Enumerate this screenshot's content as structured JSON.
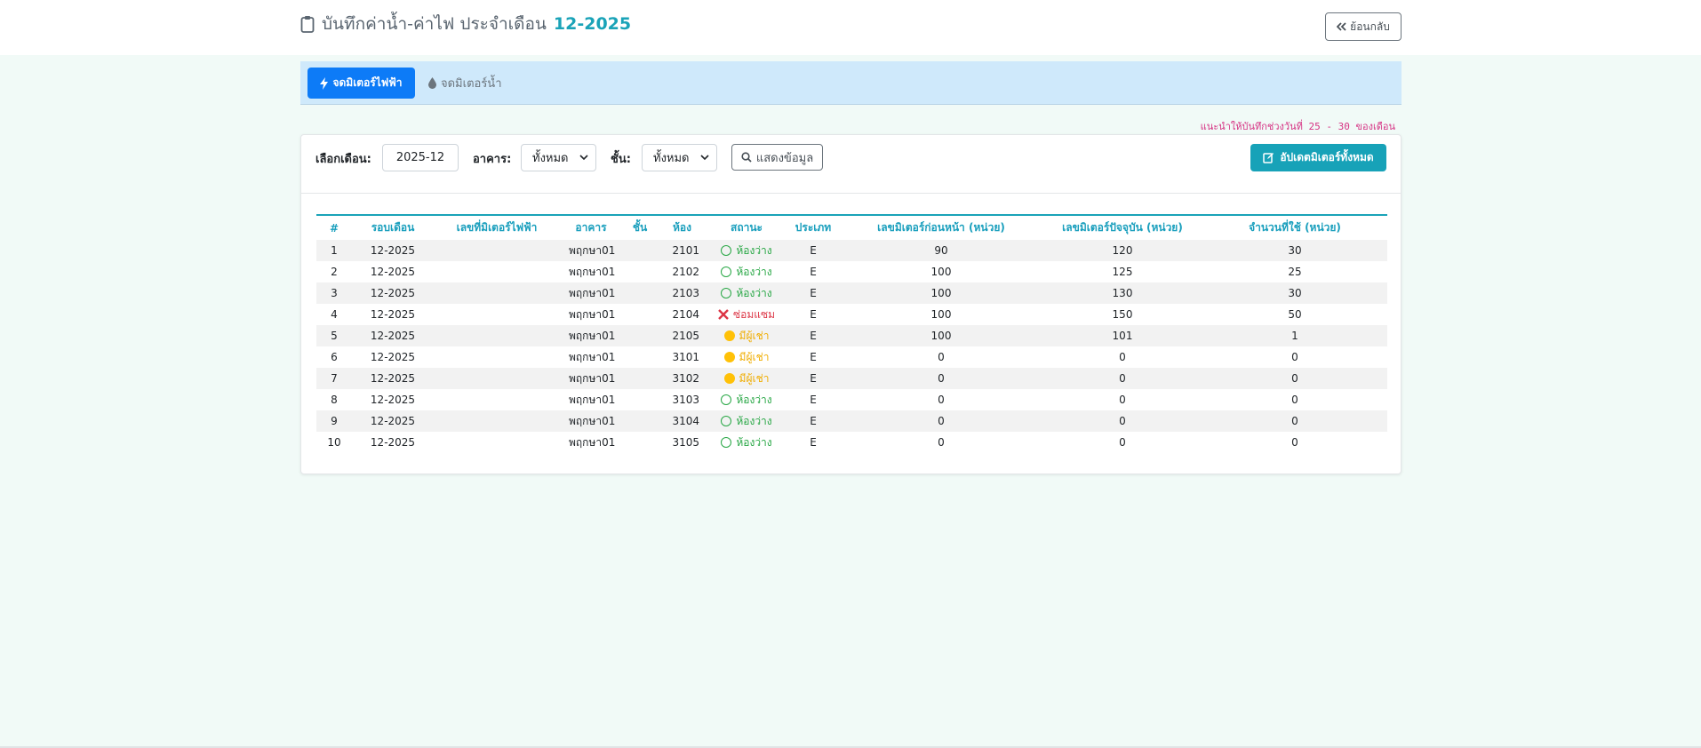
{
  "header": {
    "title": "บันทึกค่าน้ำ-ค่าไฟ ประจำเดือน",
    "month": "12-2025",
    "back_label": "ย้อนกลับ"
  },
  "tabs": {
    "electric_label": "จดมิเตอร์ไฟฟ้า",
    "water_label": "จดมิเตอร์น้ำ"
  },
  "hint": "แนะนำให้บันทึกช่วงวันที่ 25 - 30 ของเดือน",
  "filters": {
    "month_label": "เลือกเดือน:",
    "month_value": "2025-12",
    "building_label": "อาคาร:",
    "building_value": "ทั้งหมด",
    "floor_label": "ชั้น:",
    "floor_value": "ทั้งหมด",
    "show_label": "แสดงข้อมูล",
    "update_all_label": "อัปเดตมิเตอร์ทั้งหมด"
  },
  "table": {
    "headers": [
      "#",
      "รอบเดือน",
      "เลขที่มิเตอร์ไฟฟ้า",
      "อาคาร",
      "ชั้น",
      "ห้อง",
      "สถานะ",
      "ประเภท",
      "เลขมิเตอร์ก่อนหน้า (หน่วย)",
      "เลขมิเตอร์ปัจจุบัน (หน่วย)",
      "จำนวนที่ใช้ (หน่วย)"
    ],
    "rows": [
      {
        "no": "1",
        "period": "12-2025",
        "meter_no": "",
        "building": "พฤกษา01",
        "floor": "",
        "room": "2101",
        "status": "ห้องว่าง",
        "status_kind": "vacant",
        "type": "E",
        "prev": "90",
        "curr": "120",
        "used": "30"
      },
      {
        "no": "2",
        "period": "12-2025",
        "meter_no": "",
        "building": "พฤกษา01",
        "floor": "",
        "room": "2102",
        "status": "ห้องว่าง",
        "status_kind": "vacant",
        "type": "E",
        "prev": "100",
        "curr": "125",
        "used": "25"
      },
      {
        "no": "3",
        "period": "12-2025",
        "meter_no": "",
        "building": "พฤกษา01",
        "floor": "",
        "room": "2103",
        "status": "ห้องว่าง",
        "status_kind": "vacant",
        "type": "E",
        "prev": "100",
        "curr": "130",
        "used": "30"
      },
      {
        "no": "4",
        "period": "12-2025",
        "meter_no": "",
        "building": "พฤกษา01",
        "floor": "",
        "room": "2104",
        "status": "ซ่อมแซม",
        "status_kind": "repair",
        "type": "E",
        "prev": "100",
        "curr": "150",
        "used": "50"
      },
      {
        "no": "5",
        "period": "12-2025",
        "meter_no": "",
        "building": "พฤกษา01",
        "floor": "",
        "room": "2105",
        "status": "มีผู้เช่า",
        "status_kind": "rented",
        "type": "E",
        "prev": "100",
        "curr": "101",
        "used": "1"
      },
      {
        "no": "6",
        "period": "12-2025",
        "meter_no": "",
        "building": "พฤกษา01",
        "floor": "",
        "room": "3101",
        "status": "มีผู้เช่า",
        "status_kind": "rented",
        "type": "E",
        "prev": "0",
        "curr": "0",
        "used": "0"
      },
      {
        "no": "7",
        "period": "12-2025",
        "meter_no": "",
        "building": "พฤกษา01",
        "floor": "",
        "room": "3102",
        "status": "มีผู้เช่า",
        "status_kind": "rented",
        "type": "E",
        "prev": "0",
        "curr": "0",
        "used": "0"
      },
      {
        "no": "8",
        "period": "12-2025",
        "meter_no": "",
        "building": "พฤกษา01",
        "floor": "",
        "room": "3103",
        "status": "ห้องว่าง",
        "status_kind": "vacant",
        "type": "E",
        "prev": "0",
        "curr": "0",
        "used": "0"
      },
      {
        "no": "9",
        "period": "12-2025",
        "meter_no": "",
        "building": "พฤกษา01",
        "floor": "",
        "room": "3104",
        "status": "ห้องว่าง",
        "status_kind": "vacant",
        "type": "E",
        "prev": "0",
        "curr": "0",
        "used": "0"
      },
      {
        "no": "10",
        "period": "12-2025",
        "meter_no": "",
        "building": "พฤกษา01",
        "floor": "",
        "room": "3105",
        "status": "ห้องว่าง",
        "status_kind": "vacant",
        "type": "E",
        "prev": "0",
        "curr": "0",
        "used": "0"
      }
    ]
  },
  "colors": {
    "accent": "#1aa3b8",
    "primary": "#0d7bf7",
    "vacant": "#28a745",
    "repair": "#dc3545",
    "rented": "#f0ad00"
  }
}
